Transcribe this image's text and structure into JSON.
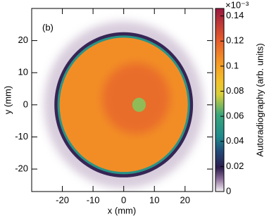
{
  "chart_data": {
    "type": "heatmap",
    "panel_label": "(b)",
    "x_label": "x (mm)",
    "y_label": "y (mm)",
    "xlim": [
      -30,
      29
    ],
    "ylim": [
      -27,
      30
    ],
    "xticks": [
      -20,
      -10,
      0,
      10,
      20
    ],
    "yticks": [
      -20,
      -10,
      0,
      10,
      20
    ],
    "colorbar": {
      "label": "Autoradiography (arb. units)",
      "multiplier": "×10⁻³",
      "zlim": [
        0,
        0.146
      ],
      "ticks": [
        0,
        0.02,
        0.04,
        0.06,
        0.08,
        0.1,
        0.12,
        0.14
      ]
    },
    "regions": [
      {
        "center": [
          0,
          0
        ],
        "radius": 26,
        "value": 0.006
      },
      {
        "center": [
          0,
          0
        ],
        "radius": 22.6,
        "value": 0.018
      },
      {
        "center": [
          0,
          0
        ],
        "radius": 21.6,
        "value": 0.05
      },
      {
        "center": [
          0,
          0
        ],
        "radius": 20.9,
        "value": 0.106
      },
      {
        "center": [
          4,
          2
        ],
        "radius": 11,
        "value": 0.122
      },
      {
        "center": [
          5,
          0
        ],
        "radius": 2.2,
        "value": 0.07
      }
    ]
  }
}
